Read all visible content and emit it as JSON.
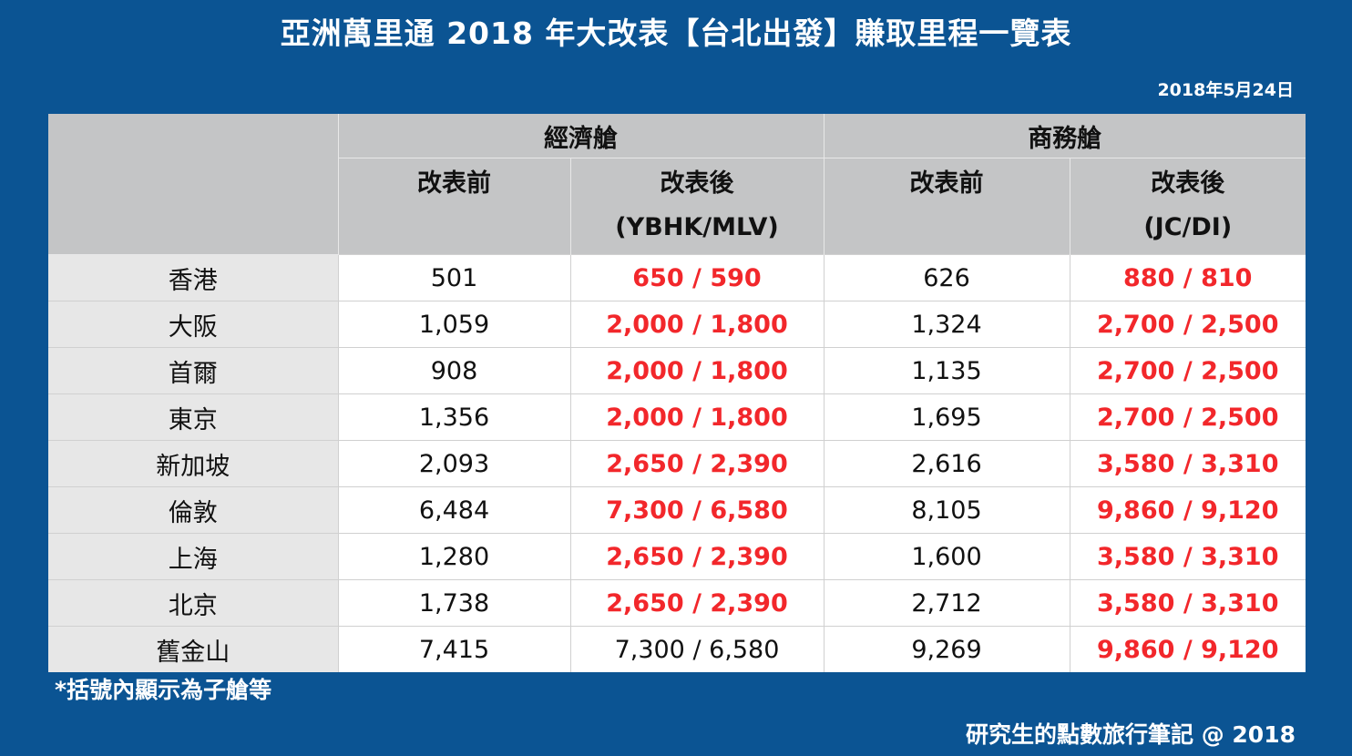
{
  "title": "亞洲萬里通 2018 年大改表【台北出發】賺取里程一覽表",
  "date": "2018年5月24日",
  "table": {
    "groups": [
      "經濟艙",
      "商務艙"
    ],
    "subheaders": [
      {
        "line1": "改表前",
        "line2": ""
      },
      {
        "line1": "改表後",
        "line2": "(YBHK/MLV)"
      },
      {
        "line1": "改表前",
        "line2": ""
      },
      {
        "line1": "改表後",
        "line2": "(JC/DI)"
      }
    ],
    "rows": [
      {
        "city": "香港",
        "eco_before": "501",
        "eco_after": "650 / 590",
        "biz_before": "626",
        "biz_after": "880 / 810"
      },
      {
        "city": "大阪",
        "eco_before": "1,059",
        "eco_after": "2,000 / 1,800",
        "biz_before": "1,324",
        "biz_after": "2,700 / 2,500"
      },
      {
        "city": "首爾",
        "eco_before": "908",
        "eco_after": "2,000 / 1,800",
        "biz_before": "1,135",
        "biz_after": "2,700 / 2,500"
      },
      {
        "city": "東京",
        "eco_before": "1,356",
        "eco_after": "2,000 / 1,800",
        "biz_before": "1,695",
        "biz_after": "2,700 / 2,500"
      },
      {
        "city": "新加坡",
        "eco_before": "2,093",
        "eco_after": "2,650 / 2,390",
        "biz_before": "2,616",
        "biz_after": "3,580 / 3,310"
      },
      {
        "city": "倫敦",
        "eco_before": "6,484",
        "eco_after": "7,300 / 6,580",
        "biz_before": "8,105",
        "biz_after": "9,860 / 9,120"
      },
      {
        "city": "上海",
        "eco_before": "1,280",
        "eco_after": "2,650 / 2,390",
        "biz_before": "1,600",
        "biz_after": "3,580 / 3,310"
      },
      {
        "city": "北京",
        "eco_before": "1,738",
        "eco_after": "2,650 / 2,390",
        "biz_before": "2,712",
        "biz_after": "3,580 / 3,310"
      },
      {
        "city": "舊金山",
        "eco_before": "7,415",
        "eco_after": "7,300 / 6,580",
        "biz_before": "9,269",
        "biz_after": "9,860 / 9,120"
      }
    ]
  },
  "note": "*括號內顯示為子艙等",
  "credit": "研究生的點數旅行筆記 @ 2018",
  "colors": {
    "background": "#0b5493",
    "header_gray": "#c4c5c6",
    "city_gray": "#e7e7e7",
    "highlight_red": "#f2272b"
  }
}
